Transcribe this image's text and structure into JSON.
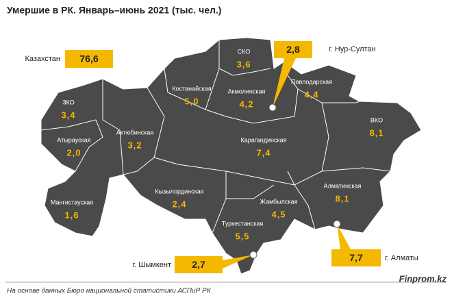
{
  "title": "Умершие в РК. Январь–июнь 2021 (тыс. чел.)",
  "total": {
    "name": "Казахстан",
    "value": "76,6"
  },
  "regions": [
    {
      "name": "ЗКО",
      "value": "3,4"
    },
    {
      "name": "Атырауская",
      "value": "2,0"
    },
    {
      "name": "Мангистауская",
      "value": "1,6"
    },
    {
      "name": "Актюбинская",
      "value": "3,2"
    },
    {
      "name": "Костанайская",
      "value": "5,0"
    },
    {
      "name": "СКО",
      "value": "3,6"
    },
    {
      "name": "Акмолинская",
      "value": "4,2"
    },
    {
      "name": "Павлодарская",
      "value": "4,4"
    },
    {
      "name": "ВКО",
      "value": "8,1"
    },
    {
      "name": "Карагандинская",
      "value": "7,4"
    },
    {
      "name": "Кызылординская",
      "value": "2,4"
    },
    {
      "name": "Жамбылская",
      "value": "4,5"
    },
    {
      "name": "Туркестанская",
      "value": "5,5"
    },
    {
      "name": "Алматинская",
      "value": "8,1"
    }
  ],
  "cities": [
    {
      "name": "г. Нур-Султан",
      "value": "2,8"
    },
    {
      "name": "г. Алматы",
      "value": "7,7"
    },
    {
      "name": "г. Шымкент",
      "value": "2,7"
    }
  ],
  "footer": {
    "source": "На основе данных Бюро национальной статистики АСПиР РК",
    "brand": "Finprom.kz"
  }
}
